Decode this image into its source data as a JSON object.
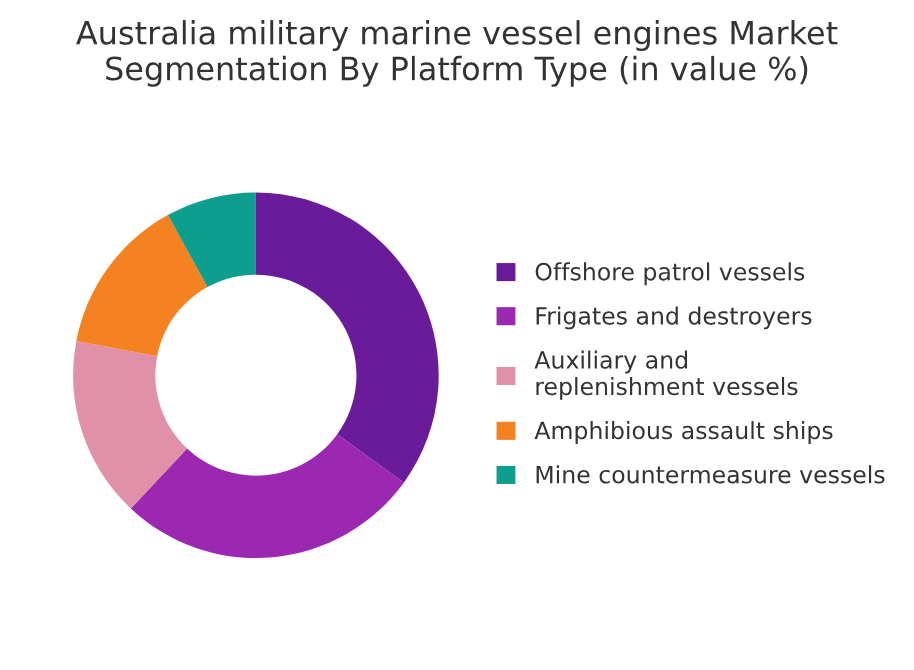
{
  "chart_data": {
    "type": "donut",
    "title": "Australia military marine vessel engines Market Segmentation By Platform Type (in value %)",
    "categories": [
      "Offshore patrol vessels",
      "Frigates and destroyers",
      "Auxiliary and replenishment vessels",
      "Amphibious assault ships",
      "Mine countermeasure vessels"
    ],
    "values": [
      35,
      27,
      16,
      14,
      8
    ],
    "colors": [
      "#6a1b9a",
      "#9c27b0",
      "#e091a8",
      "#f58220",
      "#0e9e8e"
    ],
    "legend": "right"
  }
}
